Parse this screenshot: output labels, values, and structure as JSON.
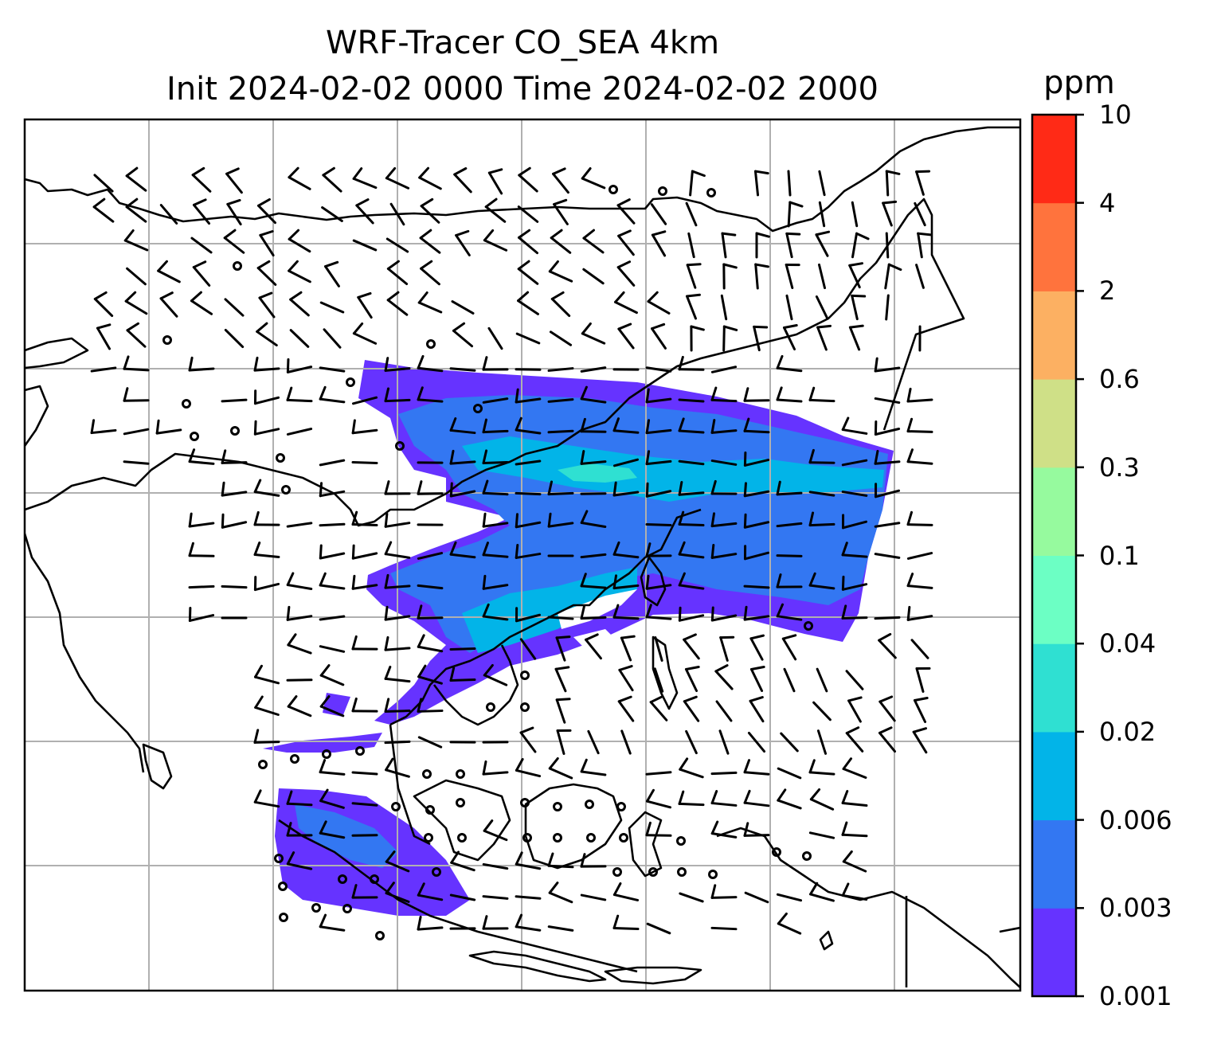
{
  "header": {
    "title_line1": "WRF-Tracer CO_SEA 4km",
    "title_line2": "Init 2024-02-02 0000 Time 2024-02-02 2000"
  },
  "colorbar": {
    "unit": "ppm",
    "ticks": [
      "0.001",
      "0.003",
      "0.006",
      "0.02",
      "0.04",
      "0.1",
      "0.3",
      "0.6",
      "2",
      "4",
      "10"
    ],
    "colors": [
      "#6633ff",
      "#3377f2",
      "#02b4e8",
      "#2fe0d2",
      "#6cffc4",
      "#96fa9e",
      "#cfe087",
      "#fcb062",
      "#ff733d",
      "#ff2a16"
    ]
  },
  "map": {
    "field": "CO tracer concentration",
    "gridlines": true,
    "wind_barbs": true,
    "coastlines": true
  }
}
